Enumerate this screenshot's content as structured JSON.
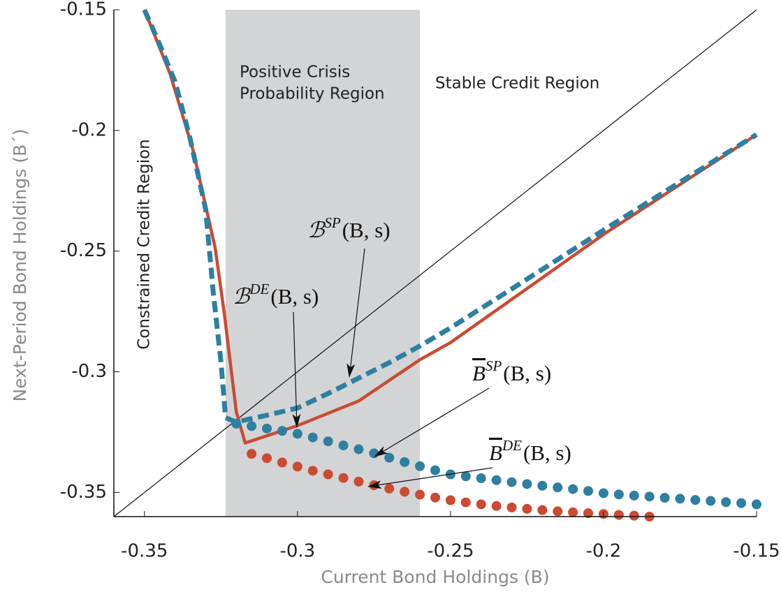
{
  "chart_data": {
    "type": "line",
    "x_label": "Current Bond Holdings (B)",
    "y_label": "Next-Period Bond Holdings (B´)",
    "xlim": [
      -0.36,
      -0.15
    ],
    "ylim": [
      -0.36,
      -0.15
    ],
    "xticks": [
      -0.35,
      -0.3,
      -0.25,
      -0.2,
      -0.15
    ],
    "yticks": [
      -0.35,
      -0.3,
      -0.25,
      -0.2,
      -0.15
    ],
    "shaded_region": [
      -0.3235,
      -0.26
    ],
    "shaded_color": "#d3d4d6",
    "region_labels": [
      "Positive Crisis",
      "Probability Region",
      "Stable Credit Region",
      "Constrained Credit Region"
    ],
    "series": [
      {
        "style": "thin",
        "color": "#111111",
        "x": [
          -0.36,
          -0.15
        ],
        "values": [
          -0.36,
          -0.15
        ]
      },
      {
        "style": "solid",
        "color": "#cc4a32",
        "x": [
          -0.35,
          -0.3417,
          -0.3342,
          -0.3269,
          -0.3239,
          -0.32,
          -0.3171,
          -0.3,
          -0.28,
          -0.26,
          -0.25,
          -0.2,
          -0.15
        ],
        "values": [
          -0.15,
          -0.1763,
          -0.2078,
          -0.2486,
          -0.276,
          -0.3165,
          -0.3295,
          -0.3223,
          -0.3121,
          -0.295,
          -0.2879,
          -0.2431,
          -0.2017
        ]
      },
      {
        "style": "dashed",
        "color": "#2f7fa0",
        "x": [
          -0.35,
          -0.345,
          -0.34,
          -0.335,
          -0.33,
          -0.3275,
          -0.325,
          -0.3235,
          -0.32,
          -0.31,
          -0.3,
          -0.29,
          -0.28,
          -0.27,
          -0.26,
          -0.25,
          -0.225,
          -0.2,
          -0.175,
          -0.15
        ],
        "values": [
          -0.15,
          -0.1645,
          -0.1798,
          -0.2038,
          -0.2327,
          -0.2674,
          -0.296,
          -0.319,
          -0.3208,
          -0.318,
          -0.315,
          -0.309,
          -0.3026,
          -0.2962,
          -0.2893,
          -0.2818,
          -0.2616,
          -0.2413,
          -0.2214,
          -0.2017
        ]
      },
      {
        "style": "dots",
        "color": "#2f7fa0",
        "x": [
          -0.32,
          -0.315,
          -0.31,
          -0.305,
          -0.3,
          -0.295,
          -0.29,
          -0.285,
          -0.28,
          -0.275,
          -0.27,
          -0.265,
          -0.26,
          -0.255,
          -0.25,
          -0.245,
          -0.24,
          -0.235,
          -0.23,
          -0.225,
          -0.22,
          -0.215,
          -0.21,
          -0.205,
          -0.2,
          -0.195,
          -0.19,
          -0.185,
          -0.18,
          -0.175,
          -0.17,
          -0.165,
          -0.16,
          -0.155,
          -0.15
        ],
        "values": [
          -0.3215,
          -0.3225,
          -0.3235,
          -0.3245,
          -0.3257,
          -0.3272,
          -0.3288,
          -0.3305,
          -0.3321,
          -0.3338,
          -0.3356,
          -0.3374,
          -0.3391,
          -0.3408,
          -0.3425,
          -0.3433,
          -0.3441,
          -0.3449,
          -0.3457,
          -0.3465,
          -0.3472,
          -0.3479,
          -0.3486,
          -0.3494,
          -0.3503,
          -0.3508,
          -0.3513,
          -0.3517,
          -0.3522,
          -0.3526,
          -0.3531,
          -0.3535,
          -0.354,
          -0.3544,
          -0.3549
        ]
      },
      {
        "style": "dots",
        "color": "#cc4a32",
        "x": [
          -0.315,
          -0.31,
          -0.305,
          -0.3,
          -0.295,
          -0.29,
          -0.285,
          -0.28,
          -0.275,
          -0.27,
          -0.265,
          -0.26,
          -0.255,
          -0.25,
          -0.245,
          -0.24,
          -0.235,
          -0.23,
          -0.225,
          -0.22,
          -0.215,
          -0.21,
          -0.205,
          -0.2,
          -0.195,
          -0.19,
          -0.185
        ],
        "values": [
          -0.334,
          -0.3358,
          -0.3376,
          -0.3393,
          -0.341,
          -0.3425,
          -0.344,
          -0.3455,
          -0.347,
          -0.3484,
          -0.3497,
          -0.3509,
          -0.3521,
          -0.3532,
          -0.3541,
          -0.3549,
          -0.3556,
          -0.3562,
          -0.3568,
          -0.3573,
          -0.3578,
          -0.3582,
          -0.3586,
          -0.3589,
          -0.3593,
          -0.3596,
          -0.36
        ]
      }
    ],
    "annotations": [
      {
        "base": "ℬ",
        "sup": "SP",
        "arg": "(B, s)"
      },
      {
        "base": "ℬ",
        "sup": "DE",
        "arg": "(B, s)"
      },
      {
        "base": "B",
        "sup": "SP",
        "arg": "(B, s)",
        "overline": true
      },
      {
        "base": "B",
        "sup": "DE",
        "arg": "(B, s)",
        "overline": true
      }
    ]
  }
}
